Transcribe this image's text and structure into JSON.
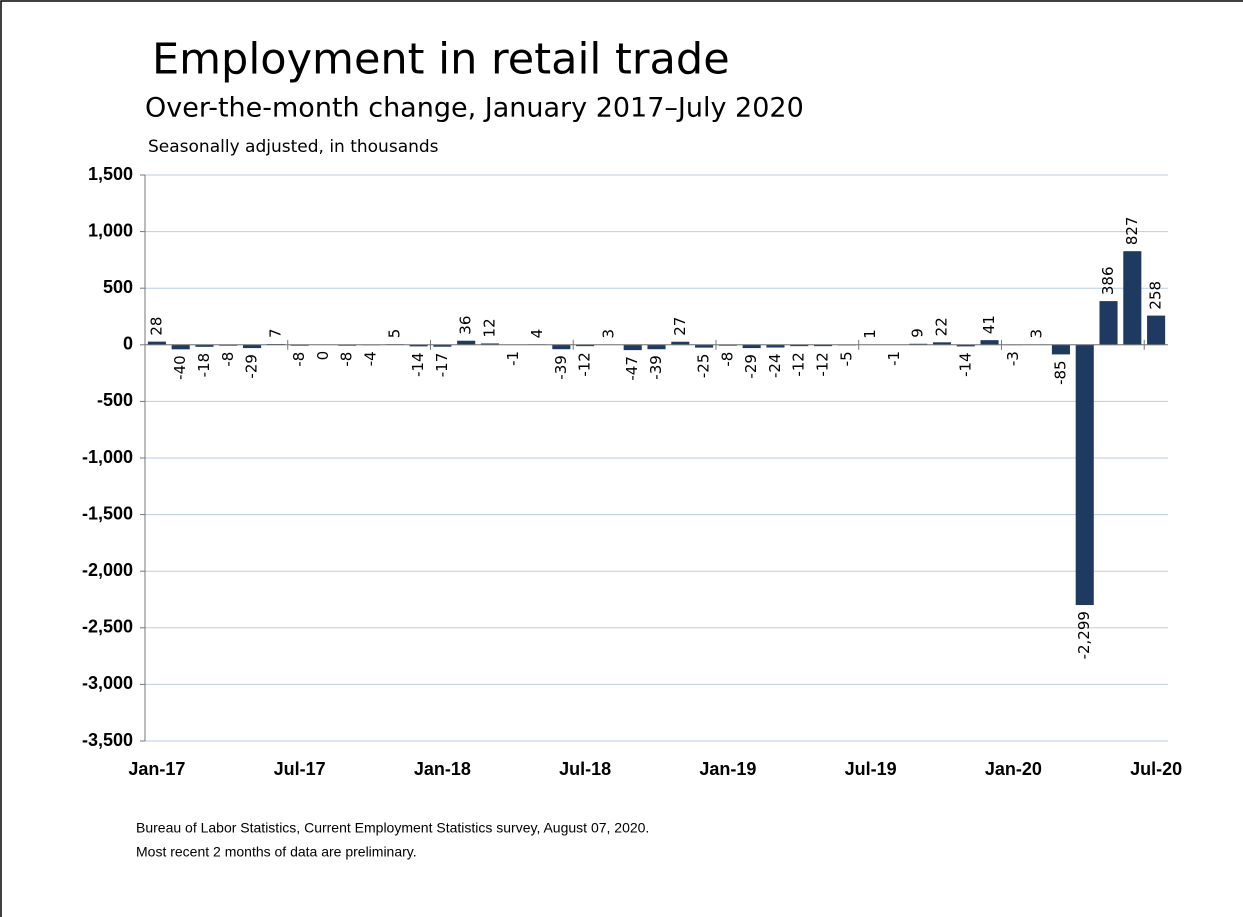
{
  "chart_data": {
    "type": "bar",
    "title": "Employment in retail trade",
    "subtitle": "Over-the-month change, January 2017–July 2020",
    "units": "Seasonally adjusted, in thousands",
    "source": "Bureau of Labor Statistics, Current Employment Statistics survey, August 07, 2020.",
    "note": "Most recent 2 months of data are preliminary.",
    "categories": [
      "Jan-17",
      null,
      null,
      null,
      null,
      null,
      "Jul-17",
      null,
      null,
      null,
      null,
      null,
      "Jan-18",
      null,
      null,
      null,
      null,
      null,
      "Jul-18",
      null,
      null,
      null,
      null,
      null,
      "Jan-19",
      null,
      null,
      null,
      null,
      null,
      "Jul-19",
      null,
      null,
      null,
      null,
      null,
      "Jan-20",
      null,
      null,
      null,
      null,
      null,
      "Jul-20"
    ],
    "values": [
      28,
      -40,
      -18,
      -8,
      -29,
      7,
      -8,
      0,
      -8,
      -4,
      5,
      -14,
      -17,
      36,
      12,
      -1,
      4,
      -39,
      -12,
      3,
      -47,
      -39,
      27,
      -25,
      -8,
      -29,
      -24,
      -12,
      -12,
      -5,
      1,
      -1,
      9,
      22,
      -14,
      41,
      -3,
      3,
      -85,
      -2299,
      386,
      827,
      258
    ],
    "value_labels": [
      "28",
      "-40",
      "-18",
      "-8",
      "-29",
      "7",
      "-8",
      "0",
      "-8",
      "-4",
      "5",
      "-14",
      "-17",
      "36",
      "12",
      "-1",
      "4",
      "-39",
      "-12",
      "3",
      "-47",
      "-39",
      "27",
      "-25",
      "-8",
      "-29",
      "-24",
      "-12",
      "-12",
      "-5",
      "1",
      "-1",
      "9",
      "22",
      "-14",
      "41",
      "-3",
      "3",
      "-85",
      "-2,299",
      "386",
      "827",
      "258"
    ],
    "color": "#1f3a60",
    "ylim": [
      -3500,
      1500
    ],
    "yticks": [
      {
        "value": -3500,
        "label": "-3,500"
      },
      {
        "value": -3000,
        "label": "-3,000"
      },
      {
        "value": -2500,
        "label": "-2,500"
      },
      {
        "value": -2000,
        "label": "-2,000"
      },
      {
        "value": -1500,
        "label": "-1,500"
      },
      {
        "value": -1000,
        "label": "-1,000"
      },
      -500,
      0,
      500,
      {
        "value": 1000,
        "label": "1,000"
      },
      {
        "value": 1500,
        "label": "1,500"
      }
    ],
    "grid": true
  }
}
